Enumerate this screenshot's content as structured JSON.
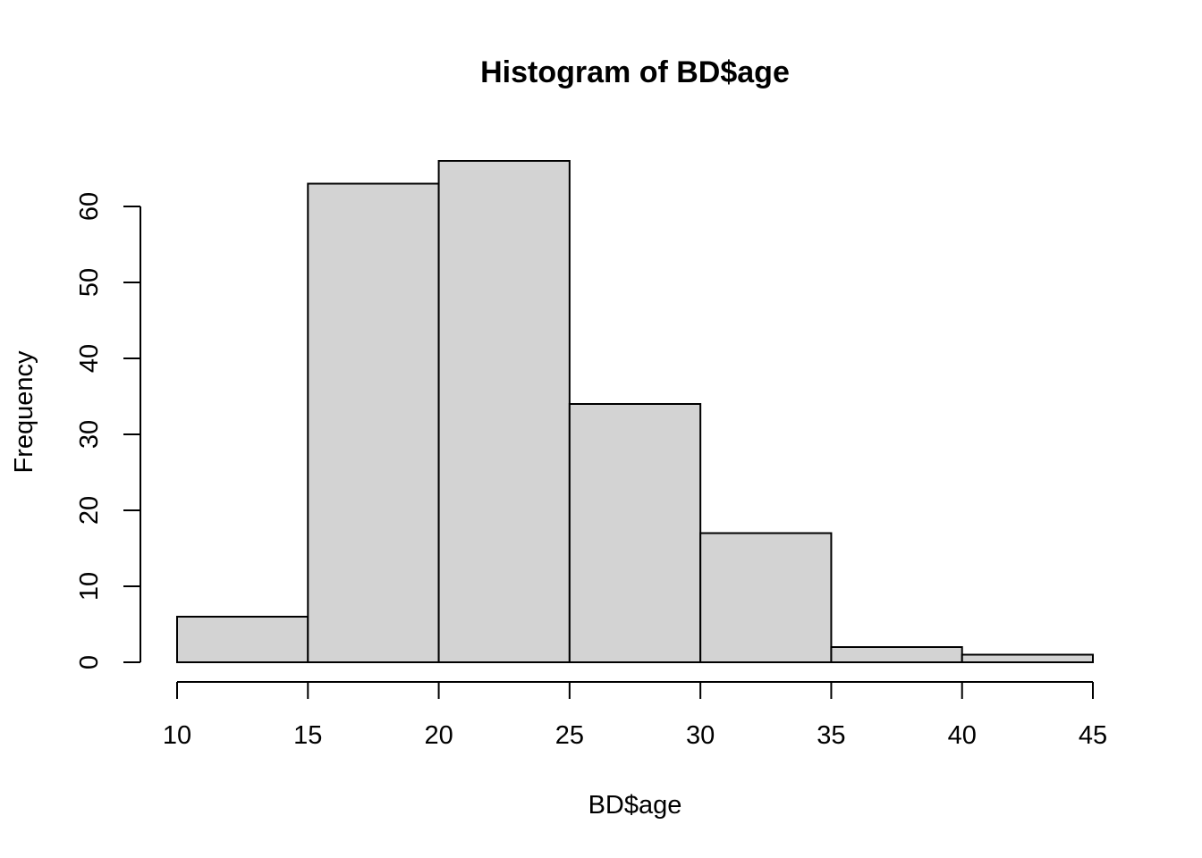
{
  "chart_data": {
    "type": "bar",
    "title": "Histogram of BD$age",
    "xlabel": "BD$age",
    "ylabel": "Frequency",
    "bins": [
      {
        "from": 10,
        "to": 15,
        "count": 6
      },
      {
        "from": 15,
        "to": 20,
        "count": 63
      },
      {
        "from": 20,
        "to": 25,
        "count": 66
      },
      {
        "from": 25,
        "to": 30,
        "count": 34
      },
      {
        "from": 30,
        "to": 35,
        "count": 17
      },
      {
        "from": 35,
        "to": 40,
        "count": 2
      },
      {
        "from": 40,
        "to": 45,
        "count": 1
      }
    ],
    "xlim": [
      10,
      45
    ],
    "ylim": [
      0,
      66
    ],
    "x_ticks": [
      "10",
      "15",
      "20",
      "25",
      "30",
      "35",
      "40",
      "45"
    ],
    "y_ticks": [
      "0",
      "10",
      "20",
      "30",
      "40",
      "50",
      "60"
    ],
    "grid": false,
    "bar_color": "#d3d3d3",
    "border_color": "#000000"
  }
}
